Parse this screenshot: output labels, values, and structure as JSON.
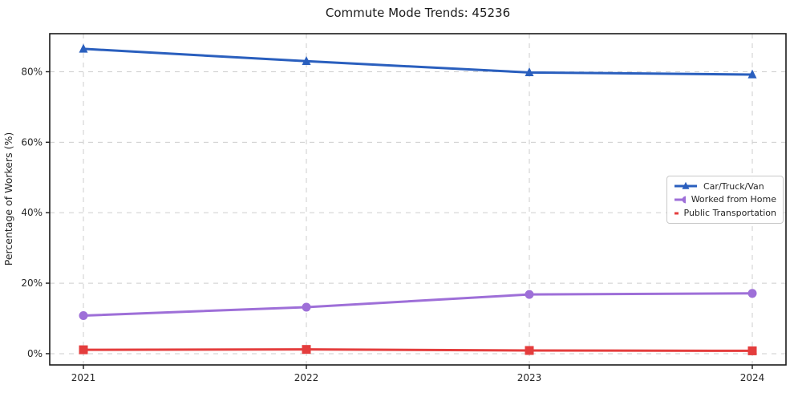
{
  "chart_data": {
    "type": "line",
    "title": "Commute Mode Trends: 45236",
    "xlabel": "",
    "ylabel": "Percentage of Workers (%)",
    "categories": [
      "2021",
      "2022",
      "2023",
      "2024"
    ],
    "series": [
      {
        "name": "Car/Truck/Van",
        "values": [
          86.5,
          83.0,
          79.8,
          79.2
        ],
        "color": "#2a5fbe",
        "marker": "triangle"
      },
      {
        "name": "Worked from Home",
        "values": [
          10.8,
          13.2,
          16.8,
          17.1
        ],
        "color": "#9e6fd8",
        "marker": "circle"
      },
      {
        "name": "Public Transportation",
        "values": [
          1.1,
          1.2,
          0.9,
          0.8
        ],
        "color": "#e43d3d",
        "marker": "square"
      }
    ],
    "yticks": [
      0,
      20,
      40,
      60,
      80
    ],
    "ytick_suffix": "%",
    "ylim": [
      -3.2,
      90.8
    ],
    "grid": "dashed",
    "grid_color": "#cdcdcd",
    "spine_color": "#1a1a1a",
    "text_color": "#262626",
    "background": "#ffffff",
    "legend_position": "center-right"
  }
}
